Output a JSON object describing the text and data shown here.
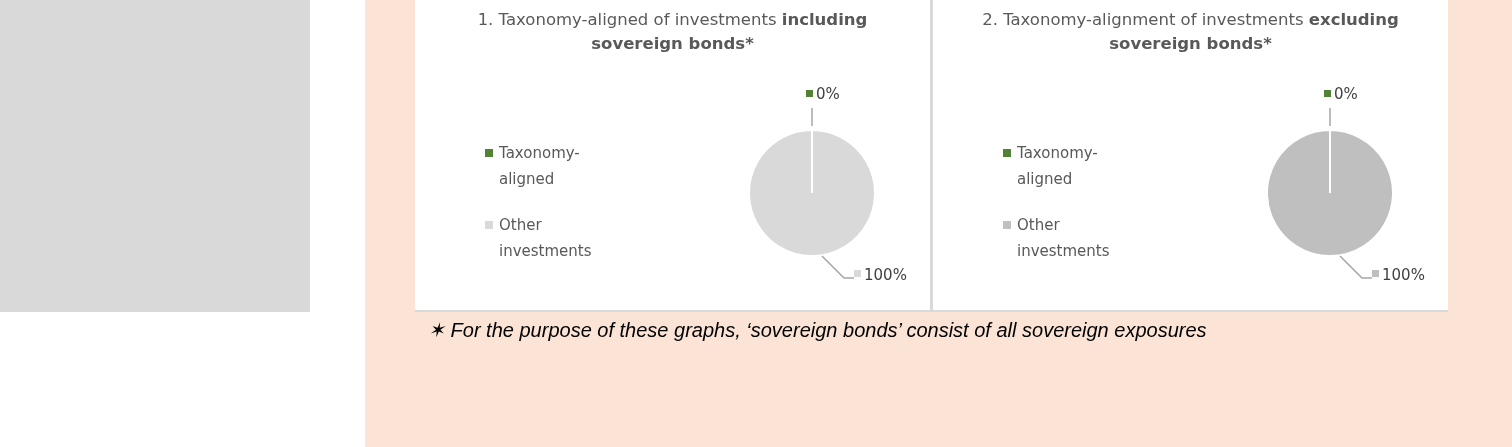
{
  "chart_data": [
    {
      "type": "pie",
      "title": "1. Taxonomy-aligned of investments",
      "subtitle": "including sovereign bonds*",
      "categories": [
        "Taxonomy-aligned",
        "Other investments"
      ],
      "values": [
        0,
        100
      ],
      "colors": [
        "#548235",
        "#d9d9d9"
      ],
      "value_labels": [
        "0%",
        "100%"
      ],
      "legend": "left",
      "annotations": [
        "✶ For the purpose of these graphs, ‘sovereign bonds’ consist of  all sovereign exposures"
      ]
    },
    {
      "type": "pie",
      "title": "2. Taxonomy-alignment of investments",
      "subtitle": "excluding sovereign bonds*",
      "categories": [
        "Taxonomy-aligned",
        "Other investments"
      ],
      "values": [
        0,
        100
      ],
      "colors": [
        "#548235",
        "#bfbfbf"
      ],
      "value_labels": [
        "0%",
        "100%"
      ],
      "legend": "left"
    }
  ]
}
